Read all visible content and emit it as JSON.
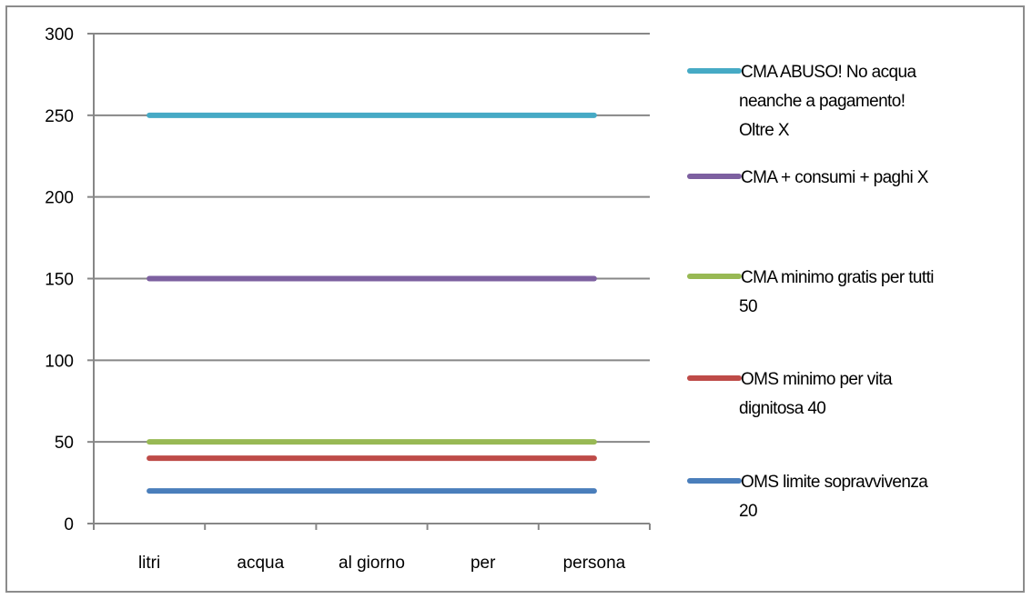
{
  "chart_data": {
    "type": "line",
    "title": "",
    "xlabel": "",
    "ylabel": "",
    "categories": [
      "litri",
      "acqua",
      "al giorno",
      "per",
      "persona"
    ],
    "ylim": [
      0,
      300
    ],
    "yticks": [
      0,
      50,
      100,
      150,
      200,
      250,
      300
    ],
    "grid": true,
    "legend_position": "right",
    "series": [
      {
        "name": "OMS limite sopravvivenza 20",
        "legend_lines": [
          "OMS limite sopravvivenza",
          "20"
        ],
        "values": [
          20,
          20,
          20,
          20,
          20
        ],
        "color": "#4a7ebb"
      },
      {
        "name": "OMS minimo per vita dignitosa 40",
        "legend_lines": [
          "OMS minimo per vita",
          "dignitosa 40"
        ],
        "values": [
          40,
          40,
          40,
          40,
          40
        ],
        "color": "#be4b48"
      },
      {
        "name": "CMA minimo gratis per tutti 50",
        "legend_lines": [
          "CMA minimo gratis per tutti",
          "50"
        ],
        "values": [
          50,
          50,
          50,
          50,
          50
        ],
        "color": "#98b954"
      },
      {
        "name": "CMA + consumi + paghi X",
        "legend_lines": [
          "CMA + consumi + paghi X"
        ],
        "values": [
          150,
          150,
          150,
          150,
          150
        ],
        "color": "#7d60a0"
      },
      {
        "name": "CMA ABUSO! No acqua neanche a pagamento! Oltre X",
        "legend_lines": [
          "CMA ABUSO! No acqua",
          "neanche a pagamento!",
          "Oltre X"
        ],
        "values": [
          250,
          250,
          250,
          250,
          250
        ],
        "color": "#46aac5"
      }
    ]
  }
}
